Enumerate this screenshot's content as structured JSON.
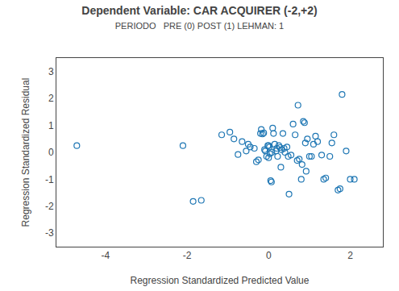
{
  "chart_data": {
    "type": "scatter",
    "title": "Dependent Variable: CAR ACQUIRER (-2,+2)",
    "subtitle": "PERIODO   PRE (0) POST (1) LEHMAN: 1",
    "xlabel": "Regression Standardized Predicted Value",
    "ylabel": "Regression Standardized Residual",
    "xlim": [
      -5.2,
      2.8
    ],
    "ylim": [
      -3.5,
      3.5
    ],
    "xticks": [
      -4,
      -2,
      0,
      2
    ],
    "yticks": [
      -3,
      -2,
      -1,
      0,
      1,
      2,
      3
    ],
    "grid": false,
    "marker": "circle-open",
    "x": [
      -4.7,
      -2.1,
      -1.85,
      -1.65,
      -1.15,
      -0.95,
      -0.85,
      -0.75,
      -0.65,
      -0.55,
      -0.5,
      -0.45,
      -0.35,
      -0.3,
      -0.25,
      -0.2,
      -0.18,
      -0.15,
      -0.12,
      -0.1,
      -0.08,
      -0.05,
      -0.02,
      0.0,
      0.0,
      0.02,
      0.03,
      0.05,
      0.07,
      0.08,
      0.1,
      0.12,
      0.15,
      0.18,
      0.2,
      0.22,
      0.25,
      0.28,
      0.3,
      0.32,
      0.35,
      0.38,
      0.4,
      0.45,
      0.48,
      0.5,
      0.55,
      0.6,
      0.65,
      0.7,
      0.72,
      0.75,
      0.8,
      0.82,
      0.85,
      0.88,
      0.9,
      0.92,
      0.95,
      1.0,
      1.05,
      1.1,
      1.15,
      1.2,
      1.3,
      1.35,
      1.4,
      1.5,
      1.55,
      1.6,
      1.7,
      1.75,
      1.8,
      1.9,
      2.0,
      2.1
    ],
    "values": [
      0.25,
      0.25,
      -1.82,
      -1.78,
      0.65,
      0.75,
      0.5,
      -0.08,
      0.4,
      0.05,
      0.3,
      0.2,
      0.15,
      -0.35,
      -0.28,
      0.7,
      0.85,
      0.68,
      0.72,
      0.1,
      0.05,
      -0.15,
      0.25,
      0.25,
      -0.2,
      0.2,
      -0.05,
      -1.05,
      -1.1,
      0.0,
      0.9,
      0.7,
      0.3,
      0.05,
      0.15,
      -0.15,
      0.25,
      0.18,
      -0.55,
      0.1,
      0.7,
      0.15,
      0.0,
      0.2,
      -0.15,
      -1.55,
      -0.1,
      1.05,
      0.65,
      -0.3,
      1.75,
      -0.25,
      -1.0,
      -0.45,
      1.15,
      1.1,
      0.35,
      -0.7,
      0.5,
      -0.15,
      -0.15,
      0.3,
      0.6,
      0.4,
      -0.1,
      -1.0,
      -0.95,
      -0.15,
      0.35,
      0.65,
      -1.4,
      -1.35,
      2.15,
      0.05,
      -1.0,
      -1.0
    ]
  }
}
